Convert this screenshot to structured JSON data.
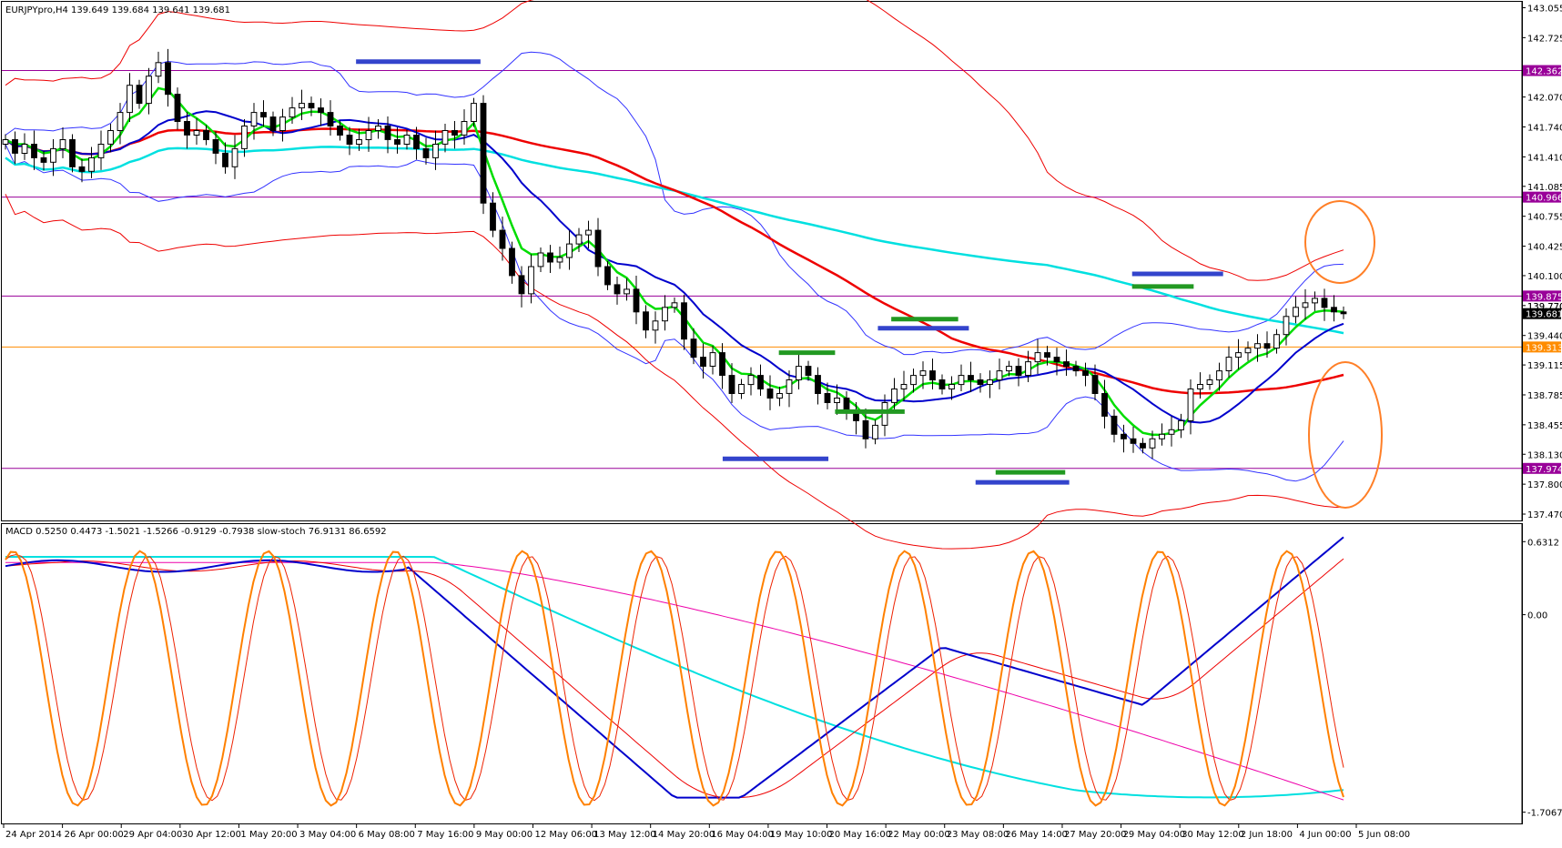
{
  "colors": {
    "up_candle": "#ffffff",
    "down_candle": "#000000",
    "ema_fast": "#00dd00",
    "sma_mid": "#0000cc",
    "sma_slow": "#ee0000",
    "sma_long": "#00e0e0",
    "bb_outer": "#ee0000",
    "bb_inner": "#3333ff",
    "hline_magenta": "#990099",
    "hline_orange": "#ff8c00",
    "macd_main": "#0000cc",
    "macd_signal": "#ee0000",
    "stoch_main": "#ff8000",
    "stoch_signal": "#ee2200",
    "macd_cyan": "#00e0e0",
    "macd_magenta": "#ee00aa",
    "level_blue": "#3344cc",
    "level_green": "#229922",
    "circle": "#ff7f27"
  },
  "chart_data": {
    "type": "candlestick",
    "symbol_header": "EURJPYpro,H4  139.649 139.684 139.641 139.681",
    "price_axis_ticks": [
      "143.055",
      "142.725",
      "142.070",
      "141.740",
      "141.410",
      "141.085",
      "140.755",
      "140.425",
      "140.100",
      "139.770",
      "139.440",
      "139.115",
      "138.785",
      "138.455",
      "138.130",
      "137.800",
      "137.470"
    ],
    "ylim": [
      137.42,
      143.1
    ],
    "x_axis_labels": [
      "24 Apr 2014",
      "26 Apr 00:00",
      "29 Apr 04:00",
      "30 Apr 12:00",
      "1 May 20:00",
      "3 May 04:00",
      "6 May 08:00",
      "7 May 16:00",
      "9 May 00:00",
      "12 May 06:00",
      "13 May 12:00",
      "14 May 20:00",
      "16 May 04:00",
      "19 May 10:00",
      "20 May 16:00",
      "22 May 00:00",
      "23 May 08:00",
      "26 May 14:00",
      "27 May 20:00",
      "29 May 04:00",
      "30 May 12:00",
      "2 Jun 18:00",
      "4 Jun 00:00",
      "5 Jun 08:00"
    ],
    "horizontal_levels": [
      {
        "price": 142.362,
        "label": "142.362",
        "color": "magenta"
      },
      {
        "price": 140.966,
        "label": "140.966",
        "color": "magenta"
      },
      {
        "price": 139.875,
        "label": "139.875",
        "color": "magenta"
      },
      {
        "price": 139.313,
        "label": "139.313",
        "color": "orange"
      },
      {
        "price": 137.974,
        "label": "137.974",
        "color": "magenta"
      }
    ],
    "current_price_label": "139.681",
    "extra_price_label": "139.770",
    "close_series": [
      141.6,
      141.45,
      141.55,
      141.4,
      141.35,
      141.5,
      141.6,
      141.3,
      141.25,
      141.4,
      141.55,
      141.7,
      141.9,
      142.2,
      142.0,
      142.3,
      142.45,
      142.1,
      141.8,
      141.65,
      141.7,
      141.6,
      141.45,
      141.3,
      141.5,
      141.75,
      141.9,
      141.85,
      141.7,
      141.85,
      141.95,
      142.0,
      141.95,
      141.9,
      141.75,
      141.65,
      141.55,
      141.6,
      141.7,
      141.75,
      141.6,
      141.55,
      141.65,
      141.5,
      141.4,
      141.55,
      141.7,
      141.65,
      141.8,
      142.0,
      140.9,
      140.6,
      140.4,
      140.1,
      139.9,
      140.2,
      140.35,
      140.25,
      140.3,
      140.45,
      140.55,
      140.6,
      140.2,
      140.0,
      139.9,
      139.95,
      139.7,
      139.5,
      139.6,
      139.75,
      139.8,
      139.4,
      139.2,
      139.1,
      139.25,
      139.0,
      138.8,
      138.9,
      139.0,
      138.85,
      138.75,
      138.8,
      138.95,
      139.1,
      139.0,
      138.8,
      138.7,
      138.75,
      138.6,
      138.5,
      138.3,
      138.45,
      138.7,
      138.85,
      138.9,
      139.0,
      139.05,
      138.95,
      138.85,
      138.9,
      139.0,
      138.95,
      138.9,
      138.95,
      139.05,
      139.1,
      139.0,
      139.15,
      139.25,
      139.2,
      139.15,
      139.1,
      139.05,
      139.0,
      138.8,
      138.55,
      138.35,
      138.3,
      138.25,
      138.2,
      138.3,
      138.35,
      138.4,
      138.5,
      138.85,
      138.9,
      138.95,
      139.05,
      139.2,
      139.25,
      139.3,
      139.35,
      139.3,
      139.45,
      139.65,
      139.75,
      139.8,
      139.85,
      139.75,
      139.7,
      139.68
    ],
    "annotations": {
      "blue_levels": [
        {
          "price": 142.46,
          "x_from": 0.262,
          "x_to": 0.355
        },
        {
          "price": 139.52,
          "x_from": 0.652,
          "x_to": 0.72
        },
        {
          "price": 138.08,
          "x_from": 0.536,
          "x_to": 0.615
        },
        {
          "price": 137.82,
          "x_from": 0.725,
          "x_to": 0.795
        },
        {
          "price": 140.12,
          "x_from": 0.842,
          "x_to": 0.91
        }
      ],
      "green_levels": [
        {
          "price": 139.62,
          "x_from": 0.662,
          "x_to": 0.712
        },
        {
          "price": 139.25,
          "x_from": 0.578,
          "x_to": 0.62
        },
        {
          "price": 138.6,
          "x_from": 0.62,
          "x_to": 0.672
        },
        {
          "price": 137.93,
          "x_from": 0.74,
          "x_to": 0.792
        },
        {
          "price": 139.98,
          "x_from": 0.842,
          "x_to": 0.888
        }
      ]
    },
    "indicator_header": "MACD 0.5250 0.4473 -1.5021 -1.5266 -0.9129 -0.7938  slow-stoch 76.9131 86.6592",
    "indicator_axis_ticks": [
      "0.6312",
      "0.00",
      "-1.7067"
    ],
    "indicator_ylim": [
      -1.78,
      0.72
    ]
  }
}
